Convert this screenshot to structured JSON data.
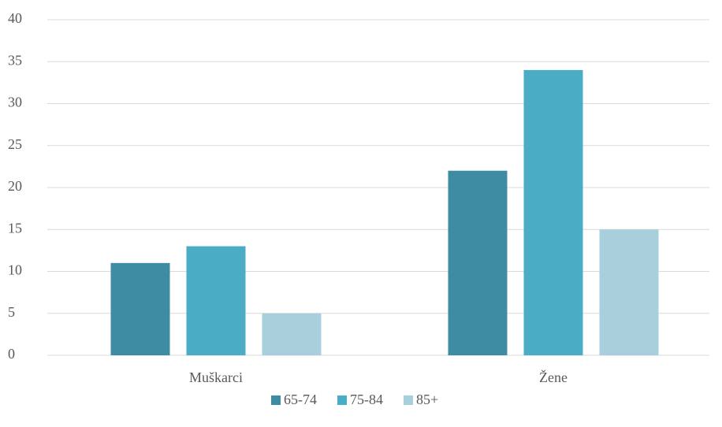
{
  "chart_data": {
    "type": "bar",
    "categories": [
      "Muškarci",
      "Žene"
    ],
    "series": [
      {
        "name": "65-74",
        "color": "#3d8ca3",
        "values": [
          11,
          22
        ]
      },
      {
        "name": "75-84",
        "color": "#4bacc6",
        "values": [
          13,
          34
        ]
      },
      {
        "name": "85+",
        "color": "#a9cfdc",
        "values": [
          5,
          15
        ]
      }
    ],
    "ylim": [
      0,
      40
    ],
    "yticks": [
      0,
      5,
      10,
      15,
      20,
      25,
      30,
      35,
      40
    ],
    "grid": true,
    "legend": "bottom"
  }
}
